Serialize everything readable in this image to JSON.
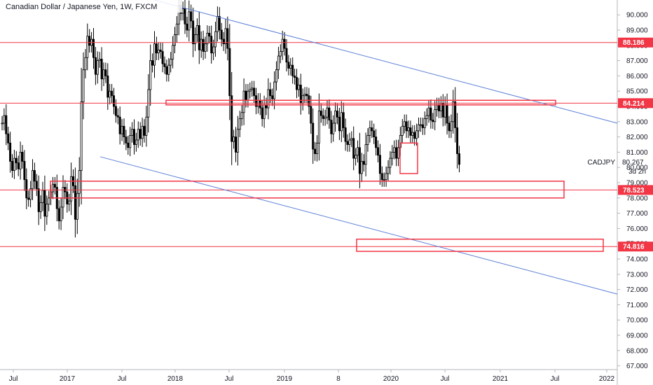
{
  "chart_data": {
    "type": "candlestick",
    "title": "Canadian Dollar / Japanese Yen, 1W, FXCM",
    "symbol": "CADJPY",
    "current_price": "80.267",
    "countdown": "3d 2h",
    "ylim": [
      66.6,
      91.0
    ],
    "y_ticks": [
      "67.000",
      "68.000",
      "69.000",
      "70.000",
      "71.000",
      "72.000",
      "73.000",
      "74.000",
      "75.000",
      "76.000",
      "77.000",
      "78.000",
      "79.000",
      "80.000",
      "81.000",
      "82.000",
      "83.000",
      "84.000",
      "85.000",
      "86.000",
      "87.000",
      "88.000",
      "89.000",
      "90.000"
    ],
    "x_ticks": [
      "Jul",
      "2017",
      "Jul",
      "2018",
      "Jul",
      "2019",
      "8",
      "2020",
      "Jul",
      "2021",
      "Jul",
      "2022"
    ],
    "horizontal_levels": [
      {
        "label": "88.186",
        "value": 88.186
      },
      {
        "label": "84.214",
        "value": 84.214
      },
      {
        "label": "78.523",
        "value": 78.523
      },
      {
        "label": "74.816",
        "value": 74.816
      }
    ],
    "zones": [
      {
        "name": "84.1-84.4 band",
        "from": "Dec 2017",
        "to": "Jul 2021",
        "low": 84.1,
        "high": 84.4
      },
      {
        "name": "78-79 demand zone",
        "from": "Jan 2016",
        "to": "Jul 2021",
        "low": 78.0,
        "high": 79.1
      },
      {
        "name": "74-75 demand zone",
        "from": "Aug 2019",
        "to": "Jan 2022",
        "low": 74.5,
        "high": 75.3
      },
      {
        "name": "recent drop box",
        "from": "Feb 2020",
        "to": "Apr 2020",
        "low": 79.6,
        "high": 81.6
      }
    ],
    "trendlines": [
      {
        "name": "upper channel line",
        "from": [
          "May 2017",
          91.0
        ],
        "to": [
          "Jan 2022",
          82.9
        ]
      },
      {
        "name": "lower channel line",
        "from": [
          "Apr 2017",
          80.7
        ],
        "to": [
          "Jan 2022",
          71.7
        ]
      }
    ],
    "closes": [
      82.9,
      83.4,
      82.2,
      81.6,
      80.4,
      79.8,
      80.6,
      80.3,
      79.9,
      81.0,
      80.4,
      79.2,
      78.0,
      77.9,
      78.6,
      79.8,
      79.1,
      78.6,
      77.1,
      77.7,
      78.5,
      76.8,
      77.6,
      78.0,
      78.4,
      78.9,
      78.7,
      77.3,
      76.5,
      77.4,
      78.7,
      78.4,
      77.6,
      77.8,
      79.4,
      78.8,
      76.6,
      78.3,
      79.8,
      84.3,
      86.4,
      87.2,
      88.6,
      88.0,
      88.4,
      87.2,
      86.1,
      87.0,
      87.1,
      85.8,
      86.4,
      86.0,
      84.6,
      85.0,
      84.7,
      84.0,
      83.4,
      83.3,
      82.2,
      82.7,
      82.0,
      81.6,
      81.3,
      82.1,
      82.5,
      81.5,
      81.8,
      82.5,
      81.9,
      82.7,
      82.1,
      83.3,
      85.1,
      87.0,
      86.7,
      88.1,
      87.5,
      87.7,
      87.6,
      86.8,
      86.6,
      86.1,
      86.7,
      87.1,
      88.0,
      88.7,
      89.4,
      90.6,
      90.1,
      90.4,
      89.4,
      89.0,
      90.2,
      89.6,
      88.1,
      88.7,
      89.3,
      87.7,
      88.4,
      87.6,
      88.1,
      88.8,
      88.6,
      87.5,
      87.9,
      88.9,
      89.9,
      89.0,
      88.4,
      88.1,
      89.1,
      87.8,
      84.7,
      81.7,
      82.0,
      81.0,
      82.5,
      83.2,
      83.6,
      85.0,
      84.4,
      85.0,
      85.1,
      85.2,
      84.7,
      84.0,
      84.4,
      83.9,
      83.2,
      84.1,
      83.9,
      85.1,
      84.7,
      84.5,
      85.6,
      86.4,
      87.3,
      87.6,
      88.4,
      87.8,
      86.9,
      86.5,
      86.7,
      86.0,
      85.9,
      85.1,
      85.4,
      84.2,
      84.7,
      84.8,
      84.7,
      84.0,
      82.9,
      81.2,
      80.9,
      81.6,
      83.7,
      83.4,
      83.2,
      83.3,
      83.9,
      83.1,
      82.2,
      82.9,
      83.7,
      83.3,
      82.4,
      83.6,
      82.6,
      81.7,
      81.5,
      81.8,
      81.9,
      80.6,
      80.8,
      81.3,
      79.6,
      80.4,
      80.2,
      81.5,
      82.1,
      82.6,
      82.4,
      82.0,
      81.3,
      80.8,
      79.6,
      79.2,
      79.2,
      79.6,
      80.0,
      80.6,
      81.0,
      81.3,
      80.6,
      81.3,
      82.1,
      82.7,
      83.0,
      82.4,
      82.6,
      82.1,
      82.3,
      81.9,
      82.4,
      82.8,
      82.8,
      82.6,
      83.2,
      83.4,
      83.9,
      83.1,
      83.0,
      83.8,
      84.1,
      83.7,
      84.2,
      83.3,
      84.1,
      82.9,
      82.4,
      83.0,
      84.3,
      82.6,
      80.9,
      80.2
    ]
  }
}
